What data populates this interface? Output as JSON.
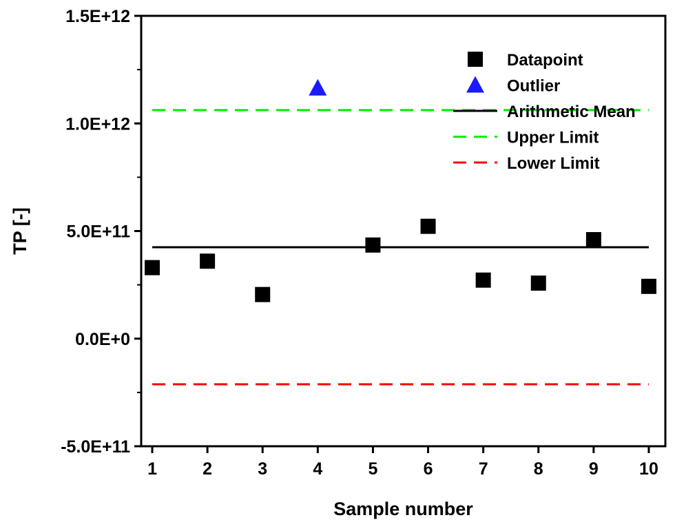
{
  "chart_data": {
    "type": "scatter",
    "xlabel": "Sample number",
    "ylabel": "TP [-]",
    "xlim": [
      0.8,
      10.3
    ],
    "ylim": [
      -500000000000,
      1500000000000
    ],
    "x_ticks": [
      1,
      2,
      3,
      4,
      5,
      6,
      7,
      8,
      9,
      10
    ],
    "x_tick_labels": [
      "1",
      "2",
      "3",
      "4",
      "5",
      "6",
      "7",
      "8",
      "9",
      "10"
    ],
    "y_ticks": [
      -500000000000,
      0,
      500000000000,
      1000000000000,
      1500000000000
    ],
    "y_tick_labels": [
      "-5.0E+11",
      "0.0E+0",
      "5.0E+11",
      "1.0E+12",
      "1.5E+12"
    ],
    "grid": false,
    "legend_position": "top-right",
    "series": [
      {
        "name": "Datapoint",
        "kind": "scatter",
        "marker": "square",
        "color": "#000000",
        "x": [
          1,
          2,
          3,
          5,
          6,
          7,
          8,
          9,
          10
        ],
        "y": [
          330000000000,
          360000000000,
          205000000000,
          435000000000,
          522000000000,
          272000000000,
          258000000000,
          460000000000,
          243000000000
        ]
      },
      {
        "name": "Outlier",
        "kind": "scatter",
        "marker": "triangle",
        "color": "#1a1aff",
        "x": [
          4
        ],
        "y": [
          1165000000000
        ]
      },
      {
        "name": "Arithmetic Mean",
        "kind": "line",
        "dash": "solid",
        "color": "#000000",
        "x": [
          1,
          10
        ],
        "y": [
          425000000000,
          425000000000
        ]
      },
      {
        "name": "Upper Limit",
        "kind": "line",
        "dash": "dashed",
        "color": "#00ee00",
        "x": [
          1,
          10
        ],
        "y": [
          1062000000000,
          1062000000000
        ]
      },
      {
        "name": "Lower Limit",
        "kind": "line",
        "dash": "dashed",
        "color": "#ff0000",
        "x": [
          1,
          10
        ],
        "y": [
          -212000000000,
          -212000000000
        ]
      }
    ]
  }
}
